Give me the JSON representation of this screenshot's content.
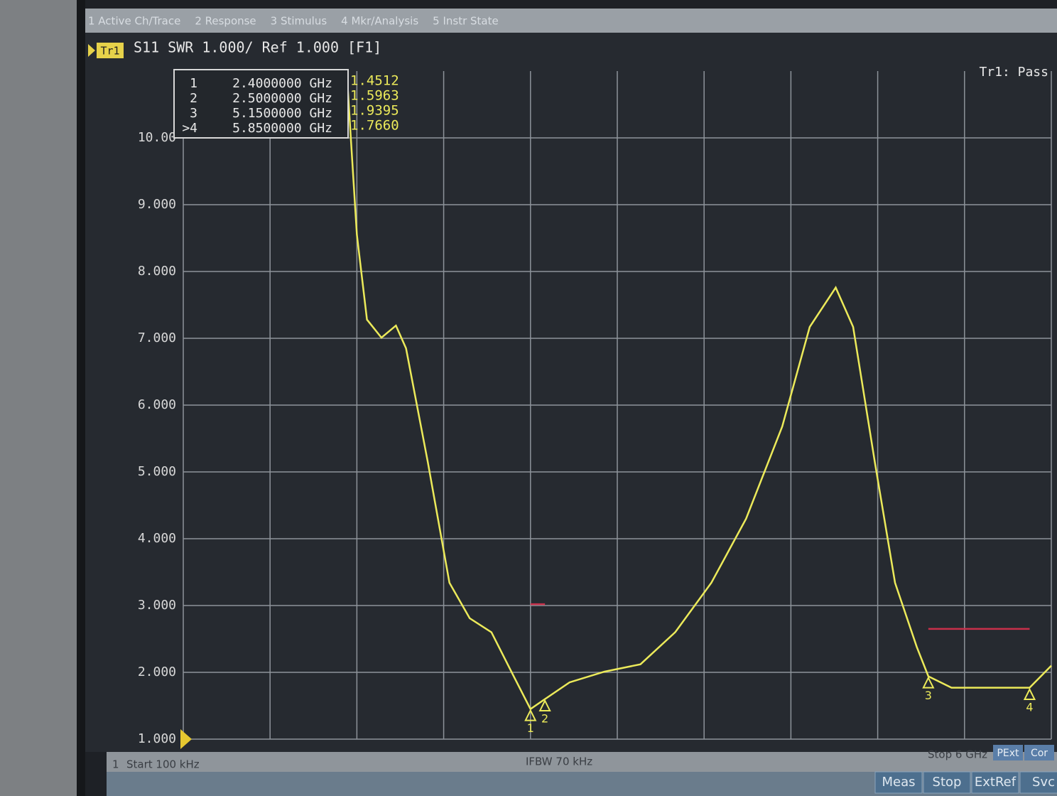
{
  "menu": [
    "1 Active Ch/Trace",
    "2 Response",
    "3 Stimulus",
    "4 Mkr/Analysis",
    "5 Instr State"
  ],
  "chart_data": {
    "type": "line",
    "trace_tag": "Tr1",
    "title": "S11 SWR 1.000/ Ref 1.000 [F1]",
    "status": "Tr1: Pass",
    "xlim": [
      0.0001,
      6
    ],
    "xticks": [
      0.0001,
      0.6,
      1.2,
      1.8,
      2.4,
      3,
      3.6,
      4.2,
      4.8,
      5.4,
      6
    ],
    "ylim": [
      1,
      11
    ],
    "yticks": [
      {
        "value": 1,
        "label": "1.000"
      },
      {
        "value": 2,
        "label": "2.000"
      },
      {
        "value": 3,
        "label": "3.000"
      },
      {
        "value": 4,
        "label": "4.000"
      },
      {
        "value": 5,
        "label": "5.000"
      },
      {
        "value": 6,
        "label": "6.000"
      },
      {
        "value": 7,
        "label": "7.000"
      },
      {
        "value": 8,
        "label": "8.000"
      },
      {
        "value": 9,
        "label": "9.000"
      },
      {
        "value": 10,
        "label": "10.00"
      }
    ],
    "grid": true,
    "x": [
      1.13,
      1.16,
      1.2,
      1.27,
      1.37,
      1.47,
      1.54,
      1.69,
      1.84,
      1.98,
      2.13,
      2.28,
      2.4,
      2.5,
      2.67,
      2.91,
      3.16,
      3.4,
      3.65,
      3.89,
      4.14,
      4.33,
      4.51,
      4.63,
      4.78,
      4.92,
      5.07,
      5.15,
      5.31,
      5.61,
      5.85,
      6
    ],
    "series": [
      {
        "name": "Tr1",
        "color": "#ecea5a",
        "values": [
          11,
          9.94,
          8.55,
          7.28,
          7.01,
          7.19,
          6.85,
          5.15,
          3.34,
          2.81,
          2.6,
          1.96,
          1.45,
          1.6,
          1.85,
          2.01,
          2.12,
          2.6,
          3.34,
          4.3,
          5.68,
          7.17,
          7.76,
          7.17,
          5.15,
          3.34,
          2.38,
          1.94,
          1.77,
          1.77,
          1.77,
          2.1
        ]
      }
    ],
    "limit_lines": [
      {
        "color": "#c8304a",
        "x": [
          2.4,
          2.5
        ],
        "values": [
          3.02,
          3.02
        ]
      },
      {
        "color": "#c8304a",
        "x": [
          5.15,
          5.85
        ],
        "values": [
          2.65,
          2.65
        ]
      }
    ],
    "markers": {
      "labels": [
        "1",
        "2",
        "3",
        ">4"
      ],
      "trace_labels": [
        "1",
        "2",
        "3",
        "4"
      ],
      "x": [
        {
          "value": 2.4,
          "label": "2.4000000 GHz"
        },
        {
          "value": 2.5,
          "label": "2.5000000 GHz"
        },
        {
          "value": 5.15,
          "label": "5.1500000 GHz"
        },
        {
          "value": 5.85,
          "label": "5.8500000 GHz"
        }
      ],
      "values": [
        1.4512,
        1.5963,
        1.9395,
        1.766
      ],
      "value_labels": [
        "1.4512",
        "1.5963",
        "1.9395",
        "1.7660"
      ]
    },
    "channel": "1",
    "start_label": "Start 100 kHz",
    "ifbw_label": "IFBW 70 kHz",
    "stop_label": "Stop 6 GHz",
    "badges": [
      "PExt",
      "Cor"
    ]
  },
  "softkeys": [
    "Meas",
    "Stop",
    "ExtRef",
    "Svc"
  ]
}
